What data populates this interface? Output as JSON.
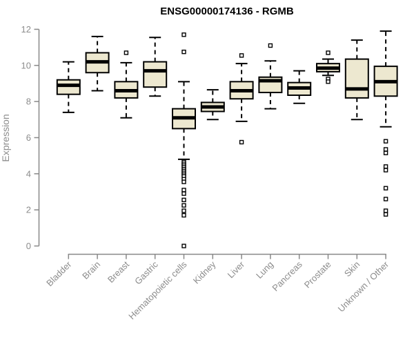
{
  "page": {
    "background_color": "#ffffff"
  },
  "chart_data": {
    "type": "boxplot",
    "title": "ENSG00000174136 - RGMB",
    "xlabel": "",
    "ylabel": "Expression",
    "ylim": [
      0,
      12
    ],
    "yticks": [
      0,
      2,
      4,
      6,
      8,
      10,
      12
    ],
    "grid": false,
    "legend": "none",
    "whisker_style": "dashed",
    "box_fill_color": "#EDE8D0",
    "box_stroke_color": "#000000",
    "axis_line_color": "#888888",
    "axis_text_color": "#8c8c8c",
    "title_color": "#000000",
    "categories": [
      "Bladder",
      "Brain",
      "Breast",
      "Gastric",
      "Hematopoietic cells",
      "Kidney",
      "Liver",
      "Lung",
      "Pancreas",
      "Prostate",
      "Skin",
      "Unknown / Other"
    ],
    "series": [
      {
        "category": "Bladder",
        "whisker_low": 7.4,
        "q1": 8.4,
        "median": 8.9,
        "q3": 9.2,
        "whisker_high": 10.2,
        "outliers": []
      },
      {
        "category": "Brain",
        "whisker_low": 8.6,
        "q1": 9.6,
        "median": 10.2,
        "q3": 10.7,
        "whisker_high": 11.6,
        "outliers": []
      },
      {
        "category": "Breast",
        "whisker_low": 7.1,
        "q1": 8.2,
        "median": 8.6,
        "q3": 9.1,
        "whisker_high": 10.15,
        "outliers": [
          10.7
        ]
      },
      {
        "category": "Gastric",
        "whisker_low": 8.3,
        "q1": 8.8,
        "median": 9.7,
        "q3": 10.2,
        "whisker_high": 11.55,
        "outliers": []
      },
      {
        "category": "Hematopoietic cells",
        "whisker_low": 4.8,
        "q1": 6.5,
        "median": 7.1,
        "q3": 7.6,
        "whisker_high": 9.1,
        "outliers": [
          11.7,
          10.75,
          4.65,
          4.55,
          4.45,
          4.35,
          4.25,
          4.15,
          4.05,
          3.95,
          3.85,
          3.7,
          3.55,
          3.1,
          2.9,
          2.55,
          2.25,
          1.95,
          1.7,
          0.0
        ]
      },
      {
        "category": "Kidney",
        "whisker_low": 7.0,
        "q1": 7.45,
        "median": 7.7,
        "q3": 7.95,
        "whisker_high": 8.65,
        "outliers": []
      },
      {
        "category": "Liver",
        "whisker_low": 6.9,
        "q1": 8.15,
        "median": 8.6,
        "q3": 9.1,
        "whisker_high": 10.1,
        "outliers": [
          10.55,
          5.75
        ]
      },
      {
        "category": "Lung",
        "whisker_low": 7.6,
        "q1": 8.5,
        "median": 9.15,
        "q3": 9.35,
        "whisker_high": 10.25,
        "outliers": [
          11.1
        ]
      },
      {
        "category": "Pancreas",
        "whisker_low": 7.9,
        "q1": 8.35,
        "median": 8.75,
        "q3": 9.05,
        "whisker_high": 9.7,
        "outliers": []
      },
      {
        "category": "Prostate",
        "whisker_low": 9.45,
        "q1": 9.65,
        "median": 9.85,
        "q3": 10.1,
        "whisker_high": 10.35,
        "outliers": [
          10.7,
          9.25,
          9.1
        ]
      },
      {
        "category": "Skin",
        "whisker_low": 7.0,
        "q1": 8.2,
        "median": 8.7,
        "q3": 10.35,
        "whisker_high": 11.4,
        "outliers": []
      },
      {
        "category": "Unknown / Other",
        "whisker_low": 6.6,
        "q1": 8.3,
        "median": 9.1,
        "q3": 9.95,
        "whisker_high": 11.9,
        "outliers": [
          5.8,
          5.35,
          5.15,
          4.4,
          4.2,
          3.2,
          2.6,
          1.95,
          1.75
        ]
      }
    ]
  }
}
